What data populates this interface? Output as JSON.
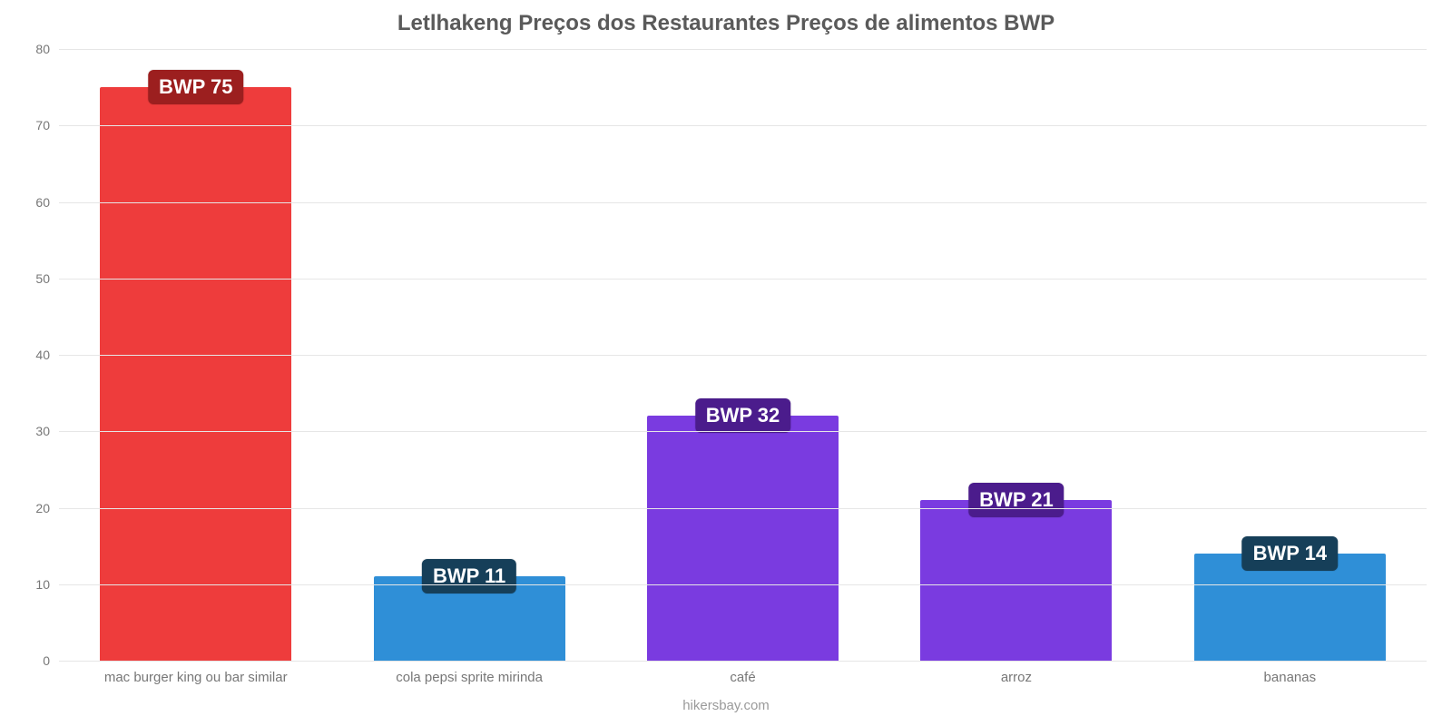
{
  "chart": {
    "type": "bar",
    "title": "Letlhakeng Preços dos Restaurantes Preços de alimentos BWP",
    "title_fontsize": 24,
    "title_color": "#5a5a5a",
    "background_color": "#ffffff",
    "grid_color": "#e6e6e6",
    "axis_label_color": "#777777",
    "tick_fontsize": 14,
    "category_fontsize": 15,
    "credit": "hikersbay.com",
    "credit_color": "#9a9a9a",
    "ylim": [
      0,
      80
    ],
    "ytick_step": 10,
    "yticks": [
      0,
      10,
      20,
      30,
      40,
      50,
      60,
      70,
      80
    ],
    "bar_width_pct": 70,
    "categories": [
      "mac burger king ou bar similar",
      "cola pepsi sprite mirinda",
      "café",
      "arroz",
      "bananas"
    ],
    "values": [
      75,
      11,
      32,
      21,
      14
    ],
    "value_labels": [
      "BWP 75",
      "BWP 11",
      "BWP 32",
      "BWP 21",
      "BWP 14"
    ],
    "bar_colors": [
      "#ee3c3c",
      "#2f8fd7",
      "#7a3be0",
      "#7a3be0",
      "#2f8fd7"
    ],
    "badge_colors": [
      "#9c1f1f",
      "#163f59",
      "#4b1c8c",
      "#4b1c8c",
      "#163f59"
    ],
    "badge_text_color": "#ffffff",
    "badge_fontsize": 22
  }
}
